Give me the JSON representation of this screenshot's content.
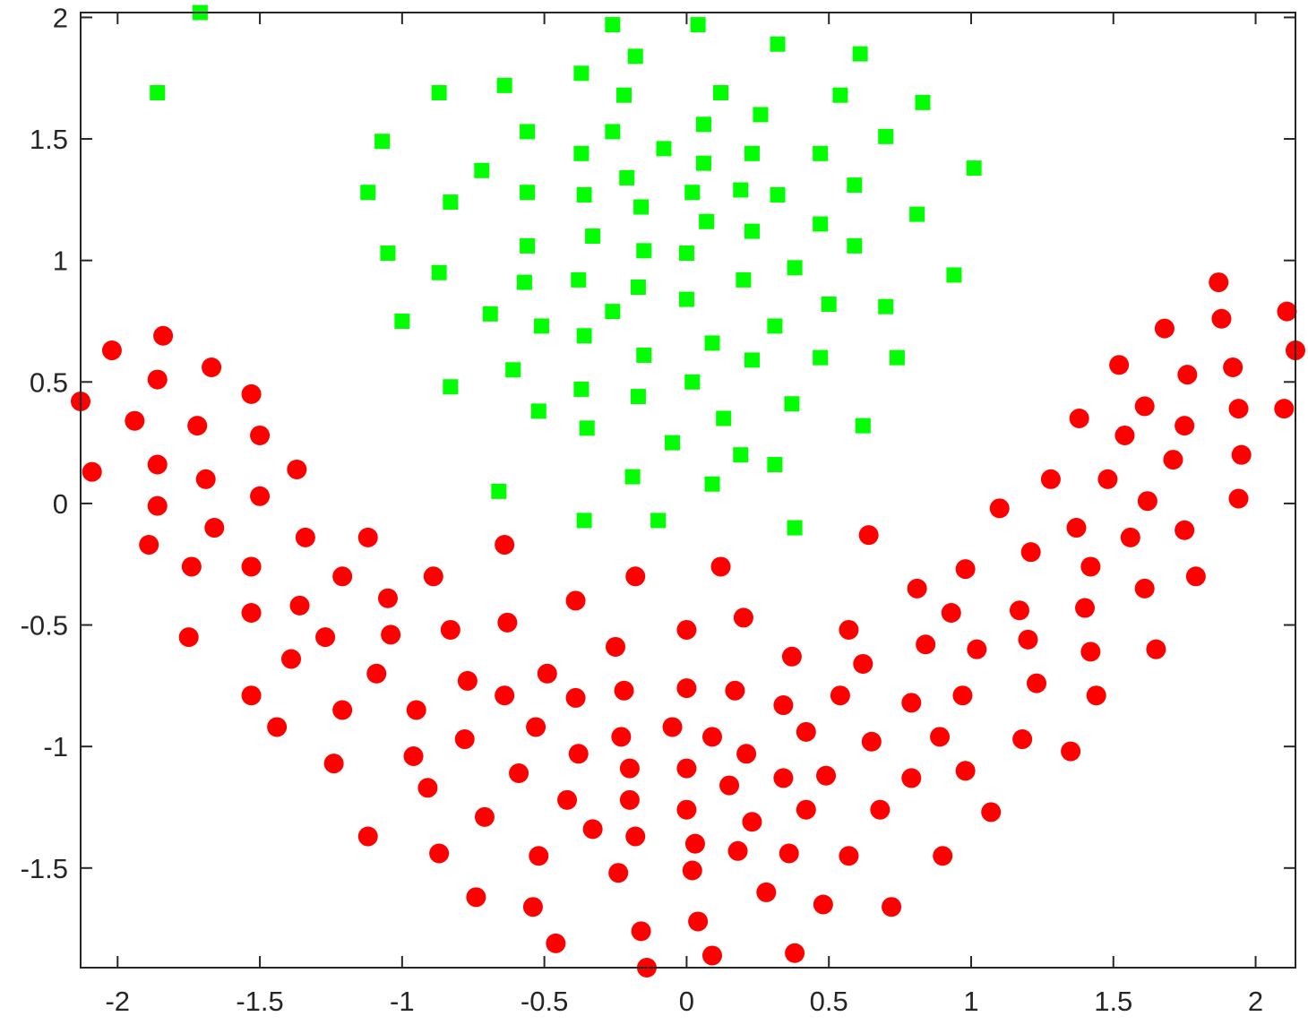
{
  "chart_data": {
    "type": "scatter",
    "title": "",
    "xlabel": "",
    "ylabel": "",
    "xlim": [
      -2.13,
      2.14
    ],
    "ylim": [
      -1.91,
      2.02
    ],
    "grid": false,
    "x_ticks": [
      -2,
      -1.5,
      -1,
      -0.5,
      0,
      0.5,
      1,
      1.5,
      2
    ],
    "x_tick_labels": [
      "-2",
      "-1.5",
      "-1",
      "-0.5",
      "0",
      "0.5",
      "1",
      "1.5",
      "2"
    ],
    "y_ticks": [
      -1.5,
      -1,
      -0.5,
      0,
      0.5,
      1,
      1.5,
      2
    ],
    "y_tick_labels": [
      "-1.5",
      "-1",
      "-0.5",
      "0",
      "0.5",
      "1",
      "1.5",
      "2"
    ],
    "series": [
      {
        "marker": "square",
        "color": "#00ff00",
        "points": [
          [
            -1.71,
            2.02
          ],
          [
            -1.86,
            1.69
          ],
          [
            -0.26,
            1.97
          ],
          [
            0.04,
            1.97
          ],
          [
            0.32,
            1.89
          ],
          [
            0.61,
            1.85
          ],
          [
            -0.18,
            1.84
          ],
          [
            -0.37,
            1.77
          ],
          [
            -0.64,
            1.72
          ],
          [
            -0.87,
            1.69
          ],
          [
            -0.22,
            1.68
          ],
          [
            0.12,
            1.69
          ],
          [
            0.54,
            1.68
          ],
          [
            0.83,
            1.65
          ],
          [
            0.26,
            1.6
          ],
          [
            0.06,
            1.56
          ],
          [
            -0.56,
            1.53
          ],
          [
            -0.26,
            1.53
          ],
          [
            0.7,
            1.51
          ],
          [
            -1.07,
            1.49
          ],
          [
            -0.08,
            1.46
          ],
          [
            -0.37,
            1.44
          ],
          [
            0.23,
            1.44
          ],
          [
            0.47,
            1.44
          ],
          [
            0.06,
            1.4
          ],
          [
            -0.72,
            1.37
          ],
          [
            1.01,
            1.38
          ],
          [
            -0.21,
            1.34
          ],
          [
            0.59,
            1.31
          ],
          [
            0.19,
            1.29
          ],
          [
            -1.12,
            1.28
          ],
          [
            -0.56,
            1.28
          ],
          [
            0.02,
            1.28
          ],
          [
            -0.36,
            1.27
          ],
          [
            0.32,
            1.27
          ],
          [
            -0.83,
            1.24
          ],
          [
            -0.16,
            1.22
          ],
          [
            0.81,
            1.19
          ],
          [
            0.07,
            1.16
          ],
          [
            0.47,
            1.15
          ],
          [
            0.23,
            1.12
          ],
          [
            -0.33,
            1.1
          ],
          [
            -0.56,
            1.06
          ],
          [
            0.59,
            1.06
          ],
          [
            -0.15,
            1.04
          ],
          [
            0.0,
            1.03
          ],
          [
            -1.05,
            1.03
          ],
          [
            0.38,
            0.97
          ],
          [
            -0.87,
            0.95
          ],
          [
            0.94,
            0.94
          ],
          [
            0.2,
            0.92
          ],
          [
            -0.38,
            0.92
          ],
          [
            -0.57,
            0.91
          ],
          [
            -0.17,
            0.89
          ],
          [
            0.0,
            0.84
          ],
          [
            0.5,
            0.82
          ],
          [
            0.7,
            0.81
          ],
          [
            -0.26,
            0.79
          ],
          [
            -0.69,
            0.78
          ],
          [
            -1.0,
            0.75
          ],
          [
            0.31,
            0.73
          ],
          [
            -0.51,
            0.73
          ],
          [
            -0.36,
            0.69
          ],
          [
            0.09,
            0.66
          ],
          [
            -0.15,
            0.61
          ],
          [
            0.47,
            0.6
          ],
          [
            0.74,
            0.6
          ],
          [
            0.23,
            0.59
          ],
          [
            -0.61,
            0.55
          ],
          [
            0.02,
            0.5
          ],
          [
            -0.83,
            0.48
          ],
          [
            -0.37,
            0.47
          ],
          [
            -0.17,
            0.44
          ],
          [
            0.37,
            0.41
          ],
          [
            -0.52,
            0.38
          ],
          [
            0.13,
            0.35
          ],
          [
            0.62,
            0.32
          ],
          [
            -0.35,
            0.31
          ],
          [
            -0.05,
            0.25
          ],
          [
            0.19,
            0.2
          ],
          [
            0.31,
            0.16
          ],
          [
            -0.19,
            0.11
          ],
          [
            0.09,
            0.08
          ],
          [
            -0.66,
            0.05
          ],
          [
            -0.36,
            -0.07
          ],
          [
            -0.1,
            -0.07
          ],
          [
            0.38,
            -0.1
          ]
        ]
      },
      {
        "marker": "circle",
        "color": "#ff0000",
        "points": [
          [
            -2.13,
            0.42
          ],
          [
            -2.02,
            0.63
          ],
          [
            -2.09,
            0.13
          ],
          [
            -1.94,
            0.34
          ],
          [
            -1.84,
            0.69
          ],
          [
            -1.86,
            0.51
          ],
          [
            -1.86,
            0.16
          ],
          [
            -1.86,
            -0.01
          ],
          [
            -1.89,
            -0.17
          ],
          [
            -1.67,
            0.56
          ],
          [
            -1.72,
            0.32
          ],
          [
            -1.69,
            0.1
          ],
          [
            -1.66,
            -0.1
          ],
          [
            -1.74,
            -0.26
          ],
          [
            -1.75,
            -0.55
          ],
          [
            -1.53,
            0.45
          ],
          [
            -1.5,
            0.28
          ],
          [
            -1.5,
            0.03
          ],
          [
            -1.53,
            -0.26
          ],
          [
            -1.53,
            -0.45
          ],
          [
            -1.53,
            -0.79
          ],
          [
            -1.44,
            -0.92
          ],
          [
            -1.37,
            0.14
          ],
          [
            -1.34,
            -0.14
          ],
          [
            -1.36,
            -0.42
          ],
          [
            -1.39,
            -0.64
          ],
          [
            -1.27,
            -0.55
          ],
          [
            -1.21,
            -0.3
          ],
          [
            -1.21,
            -0.85
          ],
          [
            -1.24,
            -1.07
          ],
          [
            -1.12,
            -0.14
          ],
          [
            -1.12,
            -1.37
          ],
          [
            -1.05,
            -0.39
          ],
          [
            -1.04,
            -0.54
          ],
          [
            -1.09,
            -0.7
          ],
          [
            -0.89,
            -0.3
          ],
          [
            -0.95,
            -0.85
          ],
          [
            -0.96,
            -1.04
          ],
          [
            -0.91,
            -1.17
          ],
          [
            -0.87,
            -1.44
          ],
          [
            -0.83,
            -0.52
          ],
          [
            -0.77,
            -0.73
          ],
          [
            -0.78,
            -0.97
          ],
          [
            -0.71,
            -1.29
          ],
          [
            -0.74,
            -1.62
          ],
          [
            -0.64,
            -0.17
          ],
          [
            -0.63,
            -0.49
          ],
          [
            -0.64,
            -0.79
          ],
          [
            -0.59,
            -1.11
          ],
          [
            -0.53,
            -0.92
          ],
          [
            -0.52,
            -1.45
          ],
          [
            -0.54,
            -1.66
          ],
          [
            -0.49,
            -0.7
          ],
          [
            -0.46,
            -1.81
          ],
          [
            -0.42,
            -1.22
          ],
          [
            -0.39,
            -0.4
          ],
          [
            -0.39,
            -0.8
          ],
          [
            -0.38,
            -1.03
          ],
          [
            -0.33,
            -1.34
          ],
          [
            -0.25,
            -0.59
          ],
          [
            -0.22,
            -0.77
          ],
          [
            -0.23,
            -0.96
          ],
          [
            -0.24,
            -1.52
          ],
          [
            -0.2,
            -1.09
          ],
          [
            -0.2,
            -1.22
          ],
          [
            -0.18,
            -1.37
          ],
          [
            -0.18,
            -0.3
          ],
          [
            -0.16,
            -1.76
          ],
          [
            -0.14,
            -1.91
          ],
          [
            -0.05,
            -0.92
          ],
          [
            0.0,
            -0.52
          ],
          [
            0.0,
            -0.76
          ],
          [
            0.0,
            -1.09
          ],
          [
            0.0,
            -1.26
          ],
          [
            0.02,
            -1.51
          ],
          [
            0.03,
            -1.4
          ],
          [
            0.04,
            -1.72
          ],
          [
            0.09,
            -0.96
          ],
          [
            0.09,
            -1.86
          ],
          [
            0.12,
            -0.26
          ],
          [
            0.15,
            -1.16
          ],
          [
            0.17,
            -0.77
          ],
          [
            0.2,
            -0.47
          ],
          [
            0.21,
            -1.03
          ],
          [
            0.18,
            -1.43
          ],
          [
            0.23,
            -1.31
          ],
          [
            0.28,
            -1.6
          ],
          [
            0.34,
            -0.83
          ],
          [
            0.34,
            -1.13
          ],
          [
            0.36,
            -1.44
          ],
          [
            0.37,
            -0.63
          ],
          [
            0.38,
            -1.85
          ],
          [
            0.42,
            -0.94
          ],
          [
            0.42,
            -1.26
          ],
          [
            0.49,
            -1.12
          ],
          [
            0.48,
            -1.65
          ],
          [
            0.54,
            -0.79
          ],
          [
            0.57,
            -0.52
          ],
          [
            0.57,
            -1.45
          ],
          [
            0.62,
            -0.66
          ],
          [
            0.64,
            -0.13
          ],
          [
            0.65,
            -0.98
          ],
          [
            0.68,
            -1.26
          ],
          [
            0.72,
            -1.66
          ],
          [
            0.79,
            -0.82
          ],
          [
            0.79,
            -1.13
          ],
          [
            0.81,
            -0.35
          ],
          [
            0.84,
            -0.58
          ],
          [
            0.89,
            -0.96
          ],
          [
            0.9,
            -1.45
          ],
          [
            0.93,
            -0.45
          ],
          [
            0.97,
            -0.79
          ],
          [
            0.98,
            -0.27
          ],
          [
            0.98,
            -1.1
          ],
          [
            1.02,
            -0.6
          ],
          [
            1.07,
            -1.27
          ],
          [
            1.1,
            -0.02
          ],
          [
            1.17,
            -0.44
          ],
          [
            1.18,
            -0.97
          ],
          [
            1.2,
            -0.56
          ],
          [
            1.21,
            -0.2
          ],
          [
            1.23,
            -0.74
          ],
          [
            1.28,
            0.1
          ],
          [
            1.35,
            -1.02
          ],
          [
            1.37,
            -0.1
          ],
          [
            1.38,
            0.35
          ],
          [
            1.4,
            -0.43
          ],
          [
            1.42,
            -0.26
          ],
          [
            1.42,
            -0.61
          ],
          [
            1.44,
            -0.79
          ],
          [
            1.48,
            0.1
          ],
          [
            1.52,
            0.57
          ],
          [
            1.54,
            0.28
          ],
          [
            1.56,
            -0.14
          ],
          [
            1.61,
            0.4
          ],
          [
            1.62,
            0.01
          ],
          [
            1.61,
            -0.35
          ],
          [
            1.65,
            -0.6
          ],
          [
            1.68,
            0.72
          ],
          [
            1.71,
            0.18
          ],
          [
            1.76,
            0.53
          ],
          [
            1.75,
            0.32
          ],
          [
            1.75,
            -0.11
          ],
          [
            1.79,
            -0.3
          ],
          [
            1.87,
            0.91
          ],
          [
            1.88,
            0.76
          ],
          [
            1.92,
            0.56
          ],
          [
            1.94,
            0.39
          ],
          [
            1.95,
            0.2
          ],
          [
            1.94,
            0.02
          ],
          [
            2.11,
            0.79
          ],
          [
            2.14,
            0.63
          ],
          [
            2.1,
            0.39
          ]
        ]
      }
    ]
  }
}
